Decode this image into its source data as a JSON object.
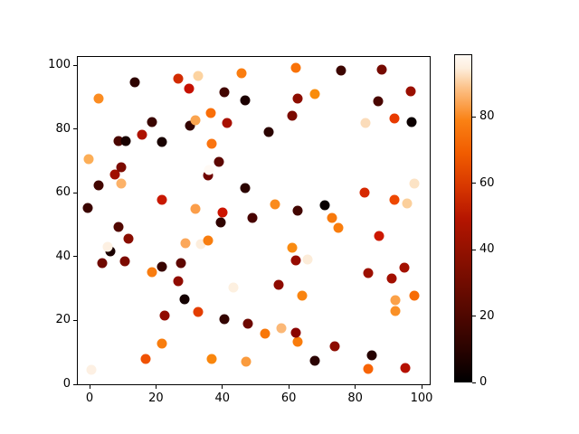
{
  "chart_data": {
    "type": "scatter",
    "title": "",
    "xlabel": "",
    "ylabel": "",
    "grid": false,
    "x_ticks": [
      "0",
      "20",
      "40",
      "60",
      "80",
      "100"
    ],
    "x_tick_values": [
      0,
      20,
      40,
      60,
      80,
      100
    ],
    "y_ticks": [
      "0",
      "20",
      "40",
      "60",
      "80",
      "100"
    ],
    "y_tick_values": [
      0,
      20,
      40,
      60,
      80,
      100
    ],
    "xlim": [
      -4,
      103
    ],
    "ylim": [
      -1,
      103
    ],
    "marker_size_px": 11,
    "colormap": "gist_heat",
    "colorbar": {
      "position": "right",
      "vmin": 0,
      "vmax": 99,
      "ticks": [
        "0",
        "20",
        "40",
        "60",
        "80"
      ],
      "tick_values": [
        0,
        20,
        40,
        60,
        80
      ],
      "gradient_stops": [
        [
          0.0,
          "#000000"
        ],
        [
          0.05,
          "#150100"
        ],
        [
          0.1,
          "#2a0300"
        ],
        [
          0.2,
          "#4e0700"
        ],
        [
          0.3,
          "#700c00"
        ],
        [
          0.4,
          "#921100"
        ],
        [
          0.5,
          "#b51500"
        ],
        [
          0.6,
          "#d83800"
        ],
        [
          0.7,
          "#f15c00"
        ],
        [
          0.8,
          "#fa8114"
        ],
        [
          0.9,
          "#fcc289"
        ],
        [
          0.96,
          "#fdeedd"
        ],
        [
          1.0,
          "#fffaf5"
        ]
      ]
    },
    "point_format": [
      "x",
      "y",
      "value",
      "color_hex"
    ],
    "points": [
      [
        13.6,
        94.6,
        8,
        "#2e0300"
      ],
      [
        2.7,
        89.5,
        79,
        "#fb8c21"
      ],
      [
        26.7,
        95.7,
        62,
        "#d22b00"
      ],
      [
        32.7,
        96.6,
        91,
        "#fcd3a0"
      ],
      [
        30.0,
        92.6,
        55,
        "#c51000"
      ],
      [
        45.8,
        97.5,
        78,
        "#fa7d10"
      ],
      [
        40.6,
        91.5,
        13,
        "#420500"
      ],
      [
        46.9,
        89.0,
        5,
        "#1c0100"
      ],
      [
        36.5,
        85.0,
        75,
        "#f96e08"
      ],
      [
        30.2,
        81.0,
        10,
        "#330300"
      ],
      [
        31.9,
        82.7,
        84,
        "#faa44f"
      ],
      [
        41.4,
        81.9,
        48,
        "#a81000"
      ],
      [
        18.8,
        82.2,
        11,
        "#3a0500"
      ],
      [
        15.8,
        78.2,
        49,
        "#ad1200"
      ],
      [
        8.7,
        76.2,
        15,
        "#4a0600"
      ],
      [
        10.9,
        76.2,
        4,
        "#190100"
      ],
      [
        21.8,
        75.9,
        4,
        "#190200"
      ],
      [
        36.8,
        75.4,
        76,
        "#fa7410"
      ],
      [
        39.0,
        69.7,
        20,
        "#5c0700"
      ],
      [
        -0.3,
        70.5,
        85,
        "#fcae57"
      ],
      [
        7.6,
        65.7,
        45,
        "#a00f00"
      ],
      [
        9.5,
        68.0,
        33,
        "#7c0a00"
      ],
      [
        35.7,
        65.4,
        28,
        "#700500"
      ],
      [
        36.0,
        67.1,
        99,
        "#fffaf5"
      ],
      [
        9.5,
        62.9,
        85,
        "#fcb269"
      ],
      [
        2.7,
        62.3,
        13,
        "#420500"
      ],
      [
        -0.5,
        55.2,
        11,
        "#3a0400"
      ],
      [
        46.9,
        61.5,
        8,
        "#2b0300"
      ],
      [
        21.8,
        57.8,
        56,
        "#c81800"
      ],
      [
        31.9,
        55.0,
        83,
        "#fb9e4a"
      ],
      [
        40.1,
        53.8,
        57,
        "#cc1400"
      ],
      [
        62.1,
        99.2,
        76,
        "#f97208"
      ],
      [
        75.7,
        98.3,
        12,
        "#3c0500"
      ],
      [
        88.0,
        98.6,
        30,
        "#750a00"
      ],
      [
        96.7,
        91.8,
        44,
        "#9a0f00"
      ],
      [
        62.7,
        89.5,
        40,
        "#8c0d00"
      ],
      [
        67.8,
        90.9,
        79,
        "#f98c0b"
      ],
      [
        86.9,
        88.7,
        15,
        "#490600"
      ],
      [
        61.0,
        84.1,
        32,
        "#7a0a00"
      ],
      [
        83.1,
        81.9,
        93,
        "#fbdcba"
      ],
      [
        91.8,
        83.3,
        66,
        "#e83a00"
      ],
      [
        97.0,
        82.2,
        2,
        "#0c0000"
      ],
      [
        54.0,
        79.0,
        8,
        "#2b0300"
      ],
      [
        82.8,
        60.1,
        61,
        "#d62800"
      ],
      [
        97.8,
        62.9,
        94,
        "#fce3c5"
      ],
      [
        91.8,
        57.8,
        68,
        "#ee4700"
      ],
      [
        95.6,
        56.7,
        90,
        "#fbcf9b"
      ],
      [
        55.9,
        56.4,
        79,
        "#fa8b1d"
      ],
      [
        62.7,
        54.4,
        13,
        "#420500"
      ],
      [
        70.8,
        56.1,
        1,
        "#070000"
      ],
      [
        8.7,
        49.3,
        17,
        "#510700"
      ],
      [
        11.7,
        45.6,
        38,
        "#890d00"
      ],
      [
        6.3,
        41.6,
        5,
        "#1a0200"
      ],
      [
        5.4,
        43.1,
        96,
        "#fdf0e2"
      ],
      [
        3.8,
        38.0,
        28,
        "#700900"
      ],
      [
        10.6,
        38.5,
        33,
        "#7c0a00"
      ],
      [
        39.5,
        50.7,
        9,
        "#2f0300"
      ],
      [
        33.5,
        43.9,
        96,
        "#fdeedd"
      ],
      [
        28.9,
        44.2,
        84,
        "#fba75a"
      ],
      [
        35.7,
        45.0,
        77,
        "#f87d0e"
      ],
      [
        21.8,
        36.8,
        11,
        "#380400"
      ],
      [
        27.5,
        38.0,
        20,
        "#5e0700"
      ],
      [
        18.8,
        35.1,
        77,
        "#f87c10"
      ],
      [
        26.7,
        32.3,
        41,
        "#900c00"
      ],
      [
        43.3,
        30.3,
        96,
        "#fdf0e0"
      ],
      [
        28.6,
        26.6,
        3,
        "#140100"
      ],
      [
        22.6,
        21.5,
        41,
        "#910b00"
      ],
      [
        32.7,
        22.7,
        65,
        "#e33d00"
      ],
      [
        40.6,
        20.4,
        10,
        "#330400"
      ],
      [
        47.7,
        19.0,
        27,
        "#6d0800"
      ],
      [
        21.8,
        12.7,
        77,
        "#f87d0e"
      ],
      [
        16.9,
        7.9,
        70,
        "#f05203"
      ],
      [
        36.8,
        7.9,
        78,
        "#f9860d"
      ],
      [
        47.1,
        7.1,
        82,
        "#fa9b3d"
      ],
      [
        0.5,
        4.5,
        96,
        "#fdf0e3"
      ],
      [
        49.0,
        52.1,
        14,
        "#470200"
      ],
      [
        73.0,
        52.1,
        77,
        "#f7790c"
      ],
      [
        74.9,
        49.0,
        77,
        "#f97d0d"
      ],
      [
        87.2,
        46.5,
        57,
        "#cc1800"
      ],
      [
        61.0,
        42.8,
        79,
        "#f98b11"
      ],
      [
        62.1,
        38.8,
        42,
        "#960b00"
      ],
      [
        65.7,
        39.1,
        95,
        "#fcecd9"
      ],
      [
        83.9,
        34.8,
        44,
        "#9d1000"
      ],
      [
        91.0,
        33.1,
        46,
        "#a20f00"
      ],
      [
        94.8,
        36.5,
        46,
        "#a31100"
      ],
      [
        56.9,
        31.2,
        40,
        "#8e0b00"
      ],
      [
        64.0,
        27.8,
        78,
        "#f98410"
      ],
      [
        92.1,
        26.3,
        84,
        "#fba148"
      ],
      [
        97.8,
        27.8,
        74,
        "#f76b05"
      ],
      [
        92.1,
        22.9,
        80,
        "#fa9026"
      ],
      [
        52.9,
        15.9,
        76,
        "#f87708"
      ],
      [
        57.8,
        17.6,
        87,
        "#fbb877"
      ],
      [
        62.7,
        13.3,
        77,
        "#f97c0c"
      ],
      [
        62.1,
        16.1,
        38,
        "#8a0300"
      ],
      [
        73.8,
        11.9,
        40,
        "#8c0b00"
      ],
      [
        67.8,
        7.4,
        8,
        "#2b0302"
      ],
      [
        85.0,
        9.1,
        7,
        "#250100"
      ],
      [
        83.9,
        4.8,
        72,
        "#f76406"
      ],
      [
        95.1,
        5.1,
        50,
        "#b51000"
      ]
    ]
  }
}
